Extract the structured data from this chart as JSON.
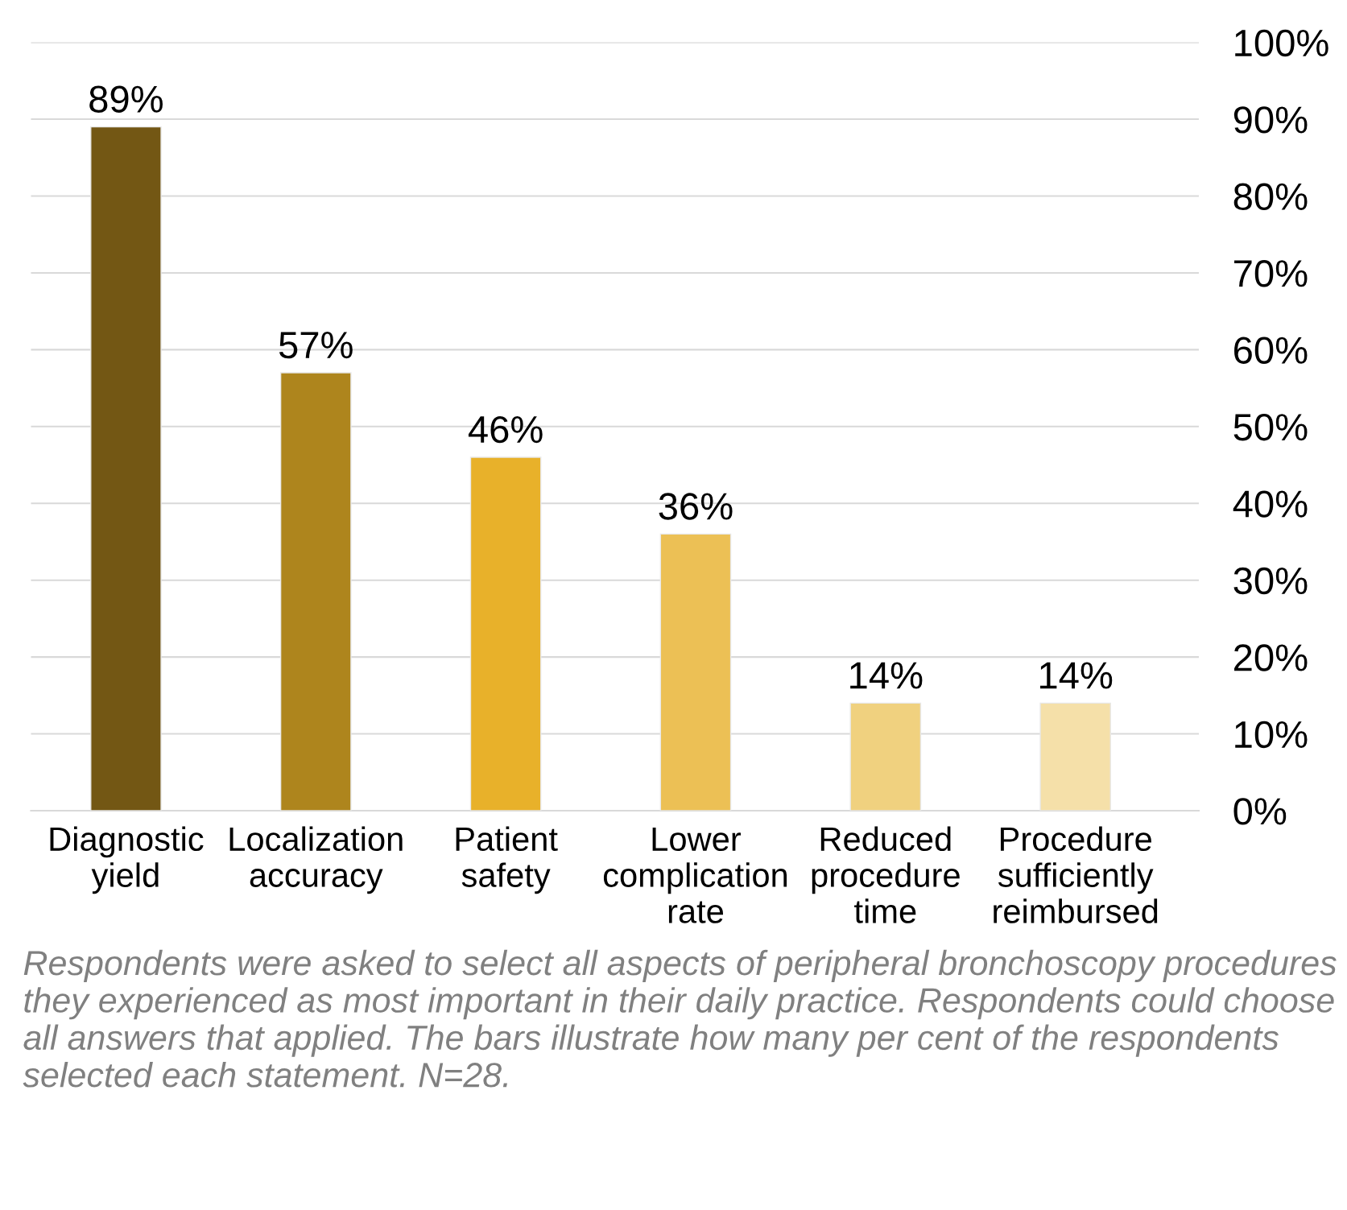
{
  "chart_data": {
    "type": "bar",
    "categories": [
      "Diagnostic\nyield",
      "Localization\naccuracy",
      "Patient\nsafety",
      "Lower\ncomplication\nrate",
      "Reduced\nprocedure\ntime",
      "Procedure\nsufficiently\nreimbursed"
    ],
    "values": [
      89,
      57,
      46,
      36,
      14,
      14
    ],
    "colors": [
      "#735714",
      "#ae851d",
      "#e8b12a",
      "#ecc055",
      "#f0d17f",
      "#f5e0a9"
    ],
    "value_labels": [
      "89%",
      "57%",
      "46%",
      "36%",
      "14%",
      "14%"
    ],
    "ylim": [
      0,
      100
    ],
    "yticks": [
      {
        "value": 0,
        "label": "0%"
      },
      {
        "value": 10,
        "label": "10%"
      },
      {
        "value": 20,
        "label": "20%"
      },
      {
        "value": 30,
        "label": "30%"
      },
      {
        "value": 40,
        "label": "40%"
      },
      {
        "value": 50,
        "label": "50%"
      },
      {
        "value": 60,
        "label": "60%"
      },
      {
        "value": 70,
        "label": "70%"
      },
      {
        "value": 80,
        "label": "80%"
      },
      {
        "value": 90,
        "label": "90%"
      },
      {
        "value": 100,
        "label": "100%"
      }
    ],
    "grid": "y",
    "annotations": [
      "Respondents were asked to select all aspects of peripheral bronchoscopy procedures they experienced as most important in their daily practice. Respondents could choose all answers that applied. The bars illustrate how many per cent of the respondents selected each statement. N=28."
    ]
  }
}
